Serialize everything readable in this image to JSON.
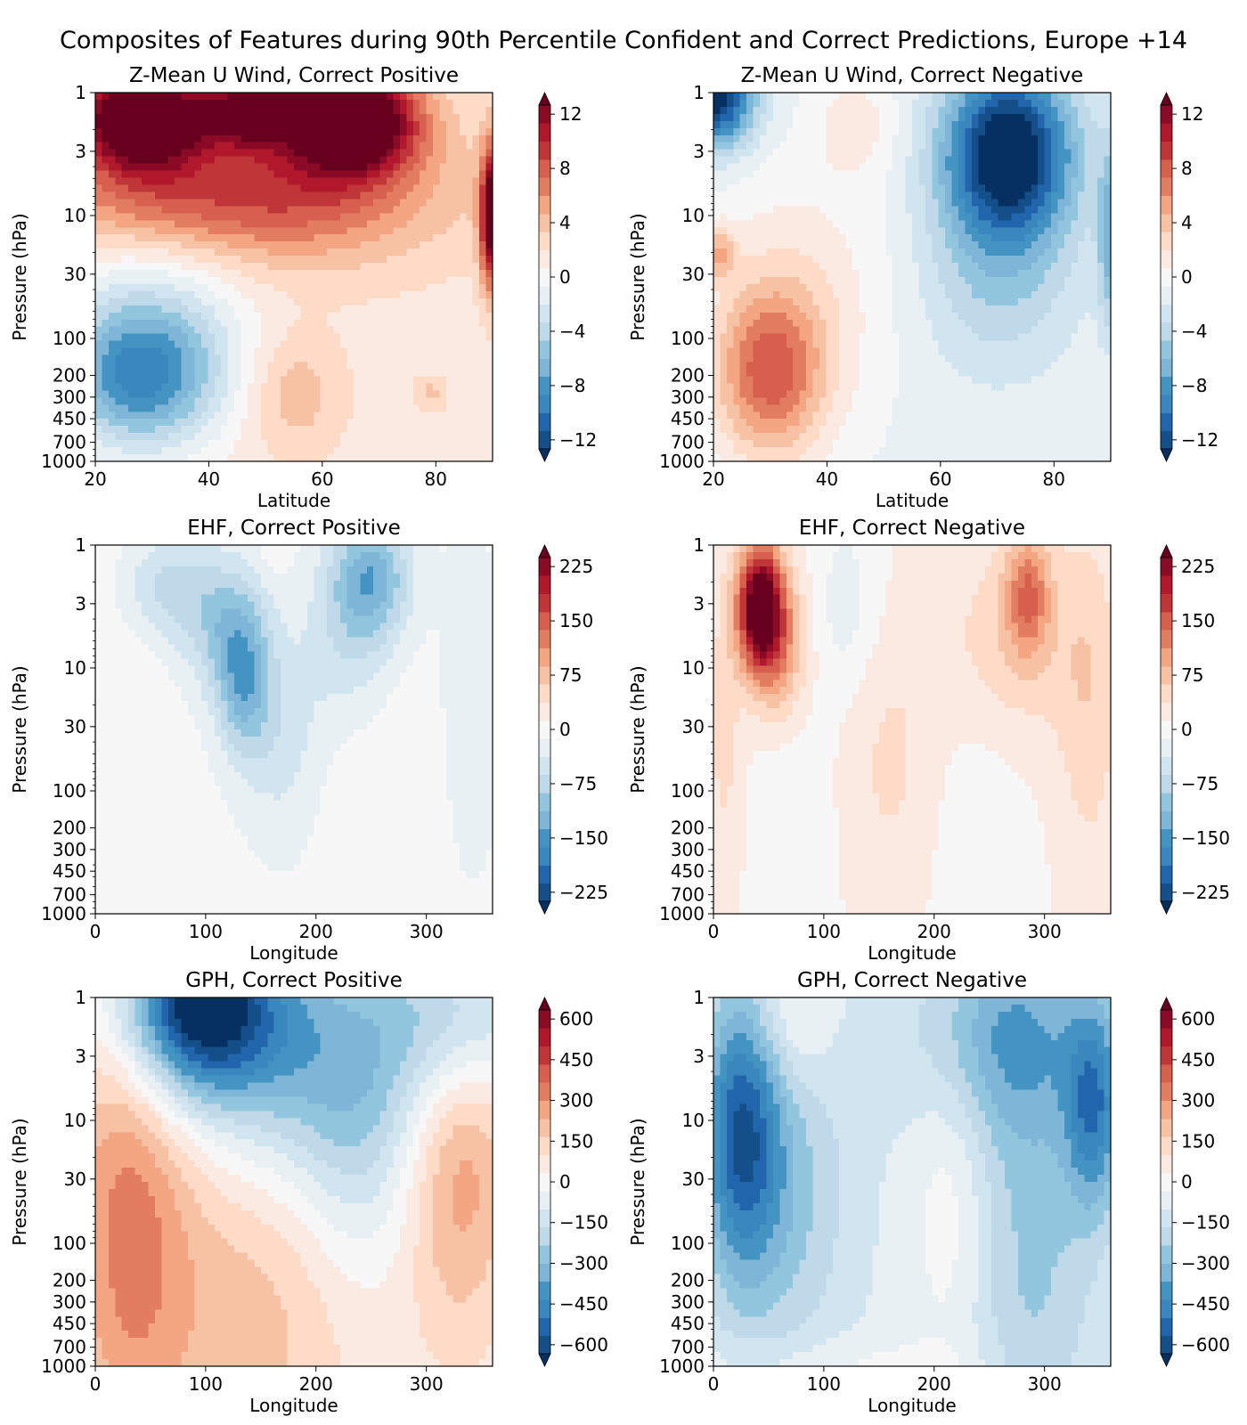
{
  "figure_title": "Composites of Features during 90th Percentile Confident and Correct Predictions, Europe +14",
  "palette": [
    "#053061",
    "#154f8a",
    "#2166ac",
    "#3a87bd",
    "#4393c3",
    "#7fb5d6",
    "#92c5de",
    "#c0d9e8",
    "#d1e5f0",
    "#e9f0f4",
    "#f7f7f7",
    "#faeae2",
    "#fddbc7",
    "#f7c1a4",
    "#f4a582",
    "#e27d62",
    "#d6604d",
    "#c03638",
    "#b2182b",
    "#8b0a26",
    "#67001f"
  ],
  "chart_data": [
    {
      "type": "heatmap",
      "subtype": "filled-contour",
      "title": "Z-Mean U Wind, Correct Positive",
      "xlabel": "Latitude",
      "ylabel": "Pressure (hPa)",
      "xlim": [
        20,
        90
      ],
      "xticks": [
        "20",
        "40",
        "60",
        "80"
      ],
      "ylim": [
        1000,
        1
      ],
      "yscale": "log",
      "yticks": [
        "1",
        "3",
        "10",
        "30",
        "100",
        "200",
        "300",
        "450",
        "700",
        "1000"
      ],
      "colorbar": {
        "ticks": [
          "12",
          "8",
          "4",
          "0",
          "−4",
          "−8",
          "−12"
        ],
        "range": [
          -12,
          12
        ],
        "extend": "both"
      },
      "features": [
        {
          "x": 28,
          "p": 1.6,
          "value": 14,
          "sx": 8,
          "sy": 0.3
        },
        {
          "x": 65,
          "p": 1.6,
          "value": 14,
          "sx": 8,
          "sy": 0.3
        },
        {
          "x": 47,
          "p": 1.4,
          "value": 9,
          "sx": 6,
          "sy": 0.2
        },
        {
          "x": 55,
          "p": 6,
          "value": 5,
          "sx": 20,
          "sy": 0.45
        },
        {
          "x": 30,
          "p": 8,
          "value": 3,
          "sx": 20,
          "sy": 0.3
        },
        {
          "x": 90,
          "p": 10,
          "value": 12,
          "sx": 1.5,
          "sy": 0.4
        },
        {
          "x": 28,
          "p": 220,
          "value": -8,
          "sx": 10,
          "sy": 0.4
        },
        {
          "x": 30,
          "p": 60,
          "value": -3,
          "sx": 12,
          "sy": 0.5
        },
        {
          "x": 55,
          "p": 280,
          "value": 2.5,
          "sx": 6,
          "sy": 0.35
        },
        {
          "x": 79,
          "p": 280,
          "value": 2,
          "sx": 2,
          "sy": 0.1
        }
      ],
      "background": 1.2
    },
    {
      "type": "heatmap",
      "subtype": "filled-contour",
      "title": "Z-Mean U Wind, Correct Negative",
      "xlabel": "Latitude",
      "ylabel": "Pressure (hPa)",
      "xlim": [
        20,
        90
      ],
      "xticks": [
        "20",
        "40",
        "60",
        "80"
      ],
      "ylim": [
        1000,
        1
      ],
      "yscale": "log",
      "yticks": [
        "1",
        "3",
        "10",
        "30",
        "100",
        "200",
        "300",
        "450",
        "700",
        "1000"
      ],
      "colorbar": {
        "ticks": [
          "12",
          "8",
          "4",
          "0",
          "−4",
          "−8",
          "−12"
        ],
        "range": [
          -12,
          12
        ],
        "extend": "both"
      },
      "features": [
        {
          "x": 72,
          "p": 3,
          "value": -12,
          "sx": 8,
          "sy": 0.5
        },
        {
          "x": 70,
          "p": 30,
          "value": -3,
          "sx": 10,
          "sy": 0.6
        },
        {
          "x": 20,
          "p": 1,
          "value": -12,
          "sx": 5,
          "sy": 0.3
        },
        {
          "x": 90,
          "p": 15,
          "value": -5,
          "sx": 1.5,
          "sy": 0.5
        },
        {
          "x": 30,
          "p": 200,
          "value": 7,
          "sx": 7,
          "sy": 0.5
        },
        {
          "x": 21,
          "p": 20,
          "value": 4,
          "sx": 2,
          "sy": 0.15
        },
        {
          "x": 35,
          "p": 40,
          "value": 2,
          "sx": 12,
          "sy": 0.7
        },
        {
          "x": 45,
          "p": 1.8,
          "value": 2,
          "sx": 5,
          "sy": 0.3
        }
      ],
      "background": -0.8
    },
    {
      "type": "heatmap",
      "subtype": "filled-contour",
      "title": "EHF, Correct Positive",
      "xlabel": "Longitude",
      "ylabel": "Pressure (hPa)",
      "xlim": [
        0,
        360
      ],
      "xticks": [
        "0",
        "100",
        "200",
        "300"
      ],
      "ylim": [
        1000,
        1
      ],
      "yscale": "log",
      "yticks": [
        "1",
        "3",
        "10",
        "30",
        "100",
        "200",
        "300",
        "450",
        "700",
        "1000"
      ],
      "colorbar": {
        "ticks": [
          "225",
          "150",
          "75",
          "0",
          "−75",
          "−150",
          "−225"
        ],
        "range": [
          -250,
          250
        ],
        "extend": "both"
      },
      "features": [
        {
          "x": 135,
          "p": 12,
          "value": -110,
          "sx": 18,
          "sy": 0.45
        },
        {
          "x": 110,
          "p": 4,
          "value": -70,
          "sx": 25,
          "sy": 0.4
        },
        {
          "x": 60,
          "p": 2.2,
          "value": -60,
          "sx": 25,
          "sy": 0.3
        },
        {
          "x": 250,
          "p": 1.8,
          "value": -110,
          "sx": 25,
          "sy": 0.35
        },
        {
          "x": 230,
          "p": 6,
          "value": -50,
          "sx": 30,
          "sy": 0.5
        },
        {
          "x": 170,
          "p": 40,
          "value": -40,
          "sx": 25,
          "sy": 0.6
        },
        {
          "x": 340,
          "p": 20,
          "value": -25,
          "sx": 20,
          "sy": 1.0
        },
        {
          "x": 30,
          "p": 50,
          "value": 12,
          "sx": 30,
          "sy": 1.2
        },
        {
          "x": 260,
          "p": 80,
          "value": 12,
          "sx": 40,
          "sy": 1.0
        },
        {
          "x": 160,
          "p": 1.1,
          "value": 15,
          "sx": 10,
          "sy": 0.15
        }
      ],
      "background": -4
    },
    {
      "type": "heatmap",
      "subtype": "filled-contour",
      "title": "EHF, Correct Negative",
      "xlabel": "Longitude",
      "ylabel": "Pressure (hPa)",
      "xlim": [
        0,
        360
      ],
      "xticks": [
        "0",
        "100",
        "200",
        "300"
      ],
      "ylim": [
        1000,
        1
      ],
      "yscale": "log",
      "yticks": [
        "1",
        "3",
        "10",
        "30",
        "100",
        "200",
        "300",
        "450",
        "700",
        "1000"
      ],
      "colorbar": {
        "ticks": [
          "225",
          "150",
          "75",
          "0",
          "−75",
          "−150",
          "−225"
        ],
        "range": [
          -250,
          250
        ],
        "extend": "both"
      },
      "features": [
        {
          "x": 42,
          "p": 3.2,
          "value": 260,
          "sx": 14,
          "sy": 0.35
        },
        {
          "x": 60,
          "p": 7,
          "value": 90,
          "sx": 18,
          "sy": 0.45
        },
        {
          "x": 10,
          "p": 30,
          "value": 35,
          "sx": 12,
          "sy": 0.9
        },
        {
          "x": 285,
          "p": 2.5,
          "value": 100,
          "sx": 14,
          "sy": 0.35
        },
        {
          "x": 270,
          "p": 6,
          "value": 45,
          "sx": 45,
          "sy": 0.6
        },
        {
          "x": 340,
          "p": 20,
          "value": 40,
          "sx": 20,
          "sy": 1.0
        },
        {
          "x": 160,
          "p": 60,
          "value": 30,
          "sx": 30,
          "sy": 0.8
        },
        {
          "x": 120,
          "p": 3,
          "value": -35,
          "sx": 20,
          "sy": 0.5
        },
        {
          "x": 70,
          "p": 100,
          "value": -20,
          "sx": 25,
          "sy": 0.9
        },
        {
          "x": 240,
          "p": 150,
          "value": -15,
          "sx": 30,
          "sy": 1.0
        }
      ],
      "background": 10
    },
    {
      "type": "heatmap",
      "subtype": "filled-contour",
      "title": "GPH, Correct Positive",
      "xlabel": "Longitude",
      "ylabel": "Pressure (hPa)",
      "xlim": [
        0,
        360
      ],
      "xticks": [
        "0",
        "100",
        "200",
        "300"
      ],
      "ylim": [
        1000,
        1
      ],
      "yscale": "log",
      "yticks": [
        "1",
        "3",
        "10",
        "30",
        "100",
        "200",
        "300",
        "450",
        "700",
        "1000"
      ],
      "colorbar": {
        "ticks": [
          "600",
          "450",
          "300",
          "150",
          "0",
          "−150",
          "−300",
          "−450",
          "−600"
        ],
        "range": [
          -650,
          650
        ],
        "extend": "both"
      },
      "features": [
        {
          "x": 90,
          "p": 1.2,
          "value": -640,
          "sx": 50,
          "sy": 0.5
        },
        {
          "x": 180,
          "p": 3,
          "value": -350,
          "sx": 80,
          "sy": 0.8
        },
        {
          "x": 330,
          "p": 1.5,
          "value": -250,
          "sx": 50,
          "sy": 0.5
        },
        {
          "x": 240,
          "p": 20,
          "value": -120,
          "sx": 40,
          "sy": 0.8
        },
        {
          "x": 30,
          "p": 50,
          "value": 250,
          "sx": 40,
          "sy": 1.5
        },
        {
          "x": 330,
          "p": 20,
          "value": 230,
          "sx": 35,
          "sy": 1.0
        },
        {
          "x": 140,
          "p": 200,
          "value": 150,
          "sx": 70,
          "sy": 1.5
        }
      ],
      "background": 40
    },
    {
      "type": "heatmap",
      "subtype": "filled-contour",
      "title": "GPH, Correct Negative",
      "xlabel": "Longitude",
      "ylabel": "Pressure (hPa)",
      "xlim": [
        0,
        360
      ],
      "xticks": [
        "0",
        "100",
        "200",
        "300"
      ],
      "ylim": [
        1000,
        1
      ],
      "yscale": "log",
      "yticks": [
        "1",
        "3",
        "10",
        "30",
        "100",
        "200",
        "300",
        "450",
        "700",
        "1000"
      ],
      "colorbar": {
        "ticks": [
          "600",
          "450",
          "300",
          "150",
          "0",
          "−150",
          "−300",
          "−450",
          "−600"
        ],
        "range": [
          -650,
          650
        ],
        "extend": "both"
      },
      "features": [
        {
          "x": 25,
          "p": 12,
          "value": -380,
          "sx": 25,
          "sy": 0.8
        },
        {
          "x": 60,
          "p": 40,
          "value": -170,
          "sx": 45,
          "sy": 1.0
        },
        {
          "x": 260,
          "p": 2,
          "value": -230,
          "sx": 60,
          "sy": 0.6
        },
        {
          "x": 345,
          "p": 8,
          "value": -330,
          "sx": 18,
          "sy": 0.6
        },
        {
          "x": 290,
          "p": 100,
          "value": -160,
          "sx": 40,
          "sy": 1.5
        },
        {
          "x": 70,
          "p": 1.5,
          "value": 110,
          "sx": 25,
          "sy": 0.4
        },
        {
          "x": 215,
          "p": 30,
          "value": 90,
          "sx": 25,
          "sy": 1.1
        },
        {
          "x": 110,
          "p": 950,
          "value": 60,
          "sx": 100,
          "sy": 0.15
        }
      ],
      "background": -70
    }
  ]
}
